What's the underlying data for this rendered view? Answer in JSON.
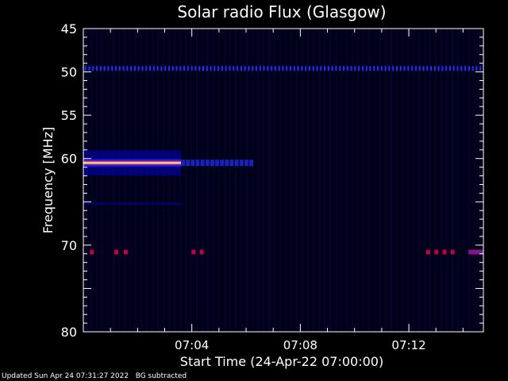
{
  "chart_data": {
    "type": "heatmap",
    "title": "Solar radio Flux (Glasgow)",
    "xlabel": "Start Time (24-Apr-22 07:00:00)",
    "ylabel": "Frequency [MHz]",
    "xlim_minutes": [
      0,
      14.75
    ],
    "ylim": [
      45,
      80
    ],
    "y_axis_inverted": true,
    "y_ticks": [
      45,
      50,
      55,
      60,
      65,
      70,
      75,
      80
    ],
    "y_tick_labels": [
      "45",
      "50",
      "55",
      "60",
      "",
      "70",
      "",
      "80"
    ],
    "x_ticks": [
      {
        "time": "07:04",
        "minute": 4
      },
      {
        "time": "07:08",
        "minute": 8
      },
      {
        "time": "07:12",
        "minute": 12
      }
    ],
    "features": [
      {
        "kind": "persistent_line",
        "freq_mhz": 49.6,
        "start_min": 0,
        "end_min": 14.75,
        "intensity": "low",
        "pattern": "dotted"
      },
      {
        "kind": "burst_band",
        "freq_mhz": 60.5,
        "start_min": 0,
        "end_min": 3.6,
        "intensity": "high"
      },
      {
        "kind": "burst_band",
        "freq_mhz": 60.5,
        "start_min": 3.6,
        "end_min": 6.2,
        "intensity": "low"
      },
      {
        "kind": "interference",
        "freq_mhz": 70.8,
        "minutes": [
          0.3,
          1.2,
          1.55,
          4.05,
          4.35,
          12.7,
          13.0,
          13.3,
          13.6
        ],
        "intensity": "medium"
      },
      {
        "kind": "interference_band",
        "freq_mhz": 70.8,
        "start_min": 14.2,
        "end_min": 14.75,
        "intensity": "medium"
      }
    ],
    "colormap": [
      "#000040",
      "#0000c0",
      "#2030ff",
      "#c00040",
      "#ff3010",
      "#ff9030",
      "#ffe0a0"
    ],
    "grid": false,
    "legend": "none"
  },
  "footer": {
    "updated": "Updated Sun Apr 24 07:31:27 2022",
    "note": "BG subtracted"
  }
}
